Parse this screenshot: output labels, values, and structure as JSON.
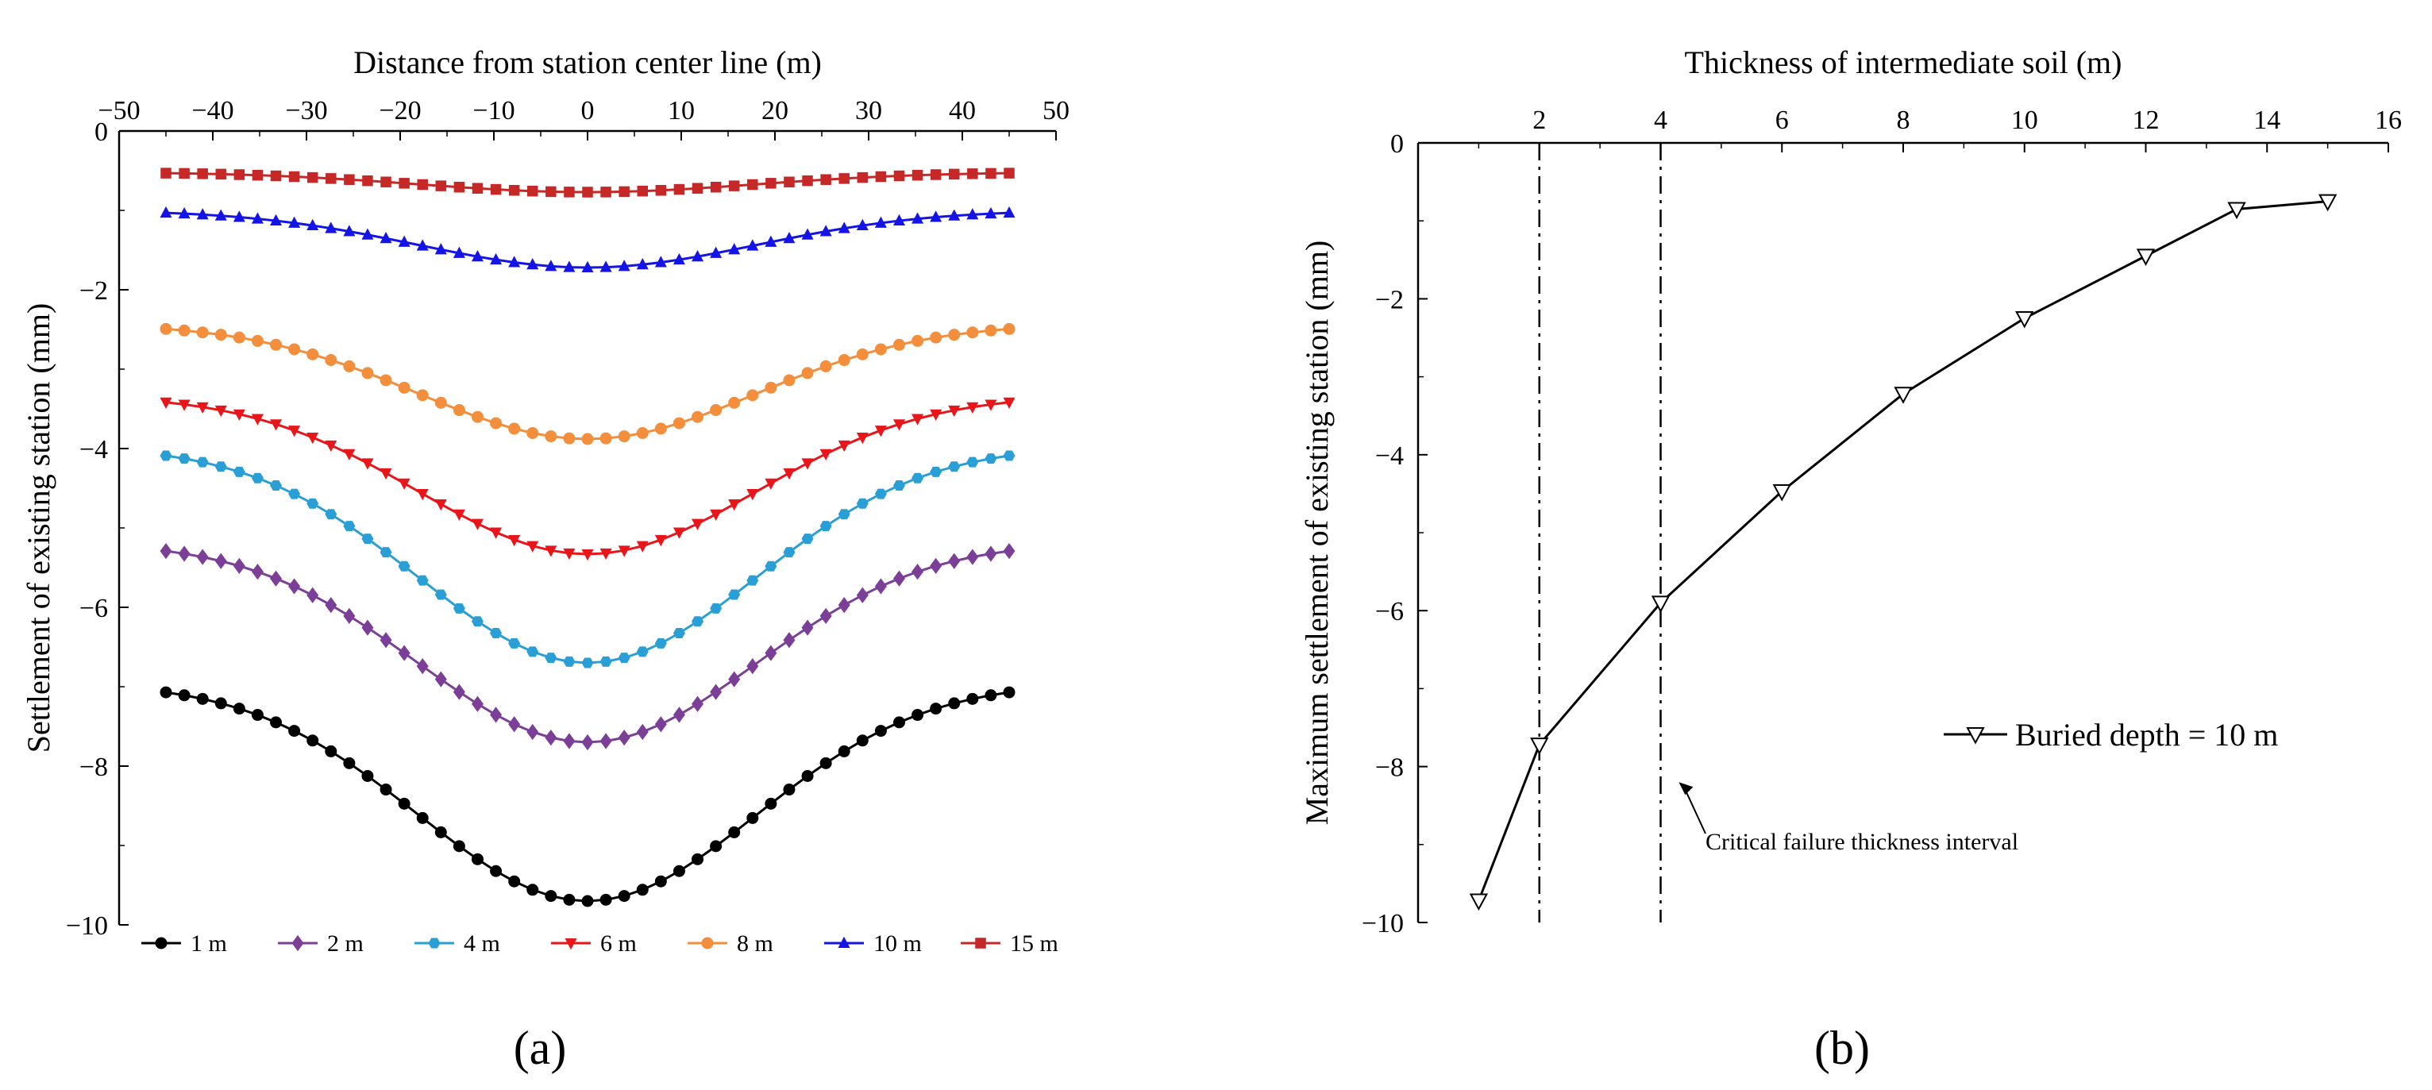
{
  "chart_data": [
    {
      "panel": "a",
      "panel_label": "(a)",
      "type": "line",
      "xlabel": "Distance from station center line (m)",
      "ylabel": "Settlement of existing station (mm)",
      "xlim": [
        -50,
        50
      ],
      "ylim": [
        -10,
        0
      ],
      "xticks": [
        -50,
        -40,
        -30,
        -20,
        -10,
        0,
        10,
        20,
        30,
        40,
        50
      ],
      "yticks": [
        0,
        -2,
        -4,
        -6,
        -8,
        -10
      ],
      "x_axis_position": "top",
      "x_range_of_data": [
        -45,
        45
      ],
      "legend_position": "bottom",
      "series": [
        {
          "name": "1 m",
          "color": "#000000",
          "marker": "circle",
          "edge": -6.95,
          "center": -9.7
        },
        {
          "name": "2 m",
          "color": "#7B3F98",
          "marker": "diamond",
          "edge": -5.18,
          "center": -7.7
        },
        {
          "name": "4 m",
          "color": "#2A9FD6",
          "marker": "hexagon",
          "edge": -3.97,
          "center": -6.7
        },
        {
          "name": "6 m",
          "color": "#E8151B",
          "marker": "triangle-down",
          "edge": -3.33,
          "center": -5.33
        },
        {
          "name": "8 m",
          "color": "#F28E3C",
          "marker": "circle",
          "edge": -2.43,
          "center": -3.88
        },
        {
          "name": "10 m",
          "color": "#1414E6",
          "marker": "triangle-up",
          "edge": -1.0,
          "center": -1.72
        },
        {
          "name": "15 m",
          "color": "#C62828",
          "marker": "square",
          "edge": -0.52,
          "center": -0.77
        }
      ]
    },
    {
      "panel": "b",
      "panel_label": "(b)",
      "type": "line",
      "xlabel": "Thickness of intermediate soil (m)",
      "ylabel": "Maximum settlement of existing station (mm)",
      "xlim": [
        0,
        16
      ],
      "ylim": [
        -10,
        0
      ],
      "xticks": [
        2,
        4,
        6,
        8,
        10,
        12,
        14,
        16
      ],
      "yticks": [
        0,
        -2,
        -4,
        -6,
        -8,
        -10
      ],
      "x_axis_position": "top",
      "legend_position": "right",
      "series": [
        {
          "name": "Buried depth = 10 m",
          "color": "#000000",
          "marker": "triangle-down-open",
          "x": [
            1,
            2,
            4,
            6,
            8,
            10,
            12,
            13.5,
            15
          ],
          "y": [
            -9.72,
            -7.72,
            -5.9,
            -4.47,
            -3.22,
            -2.25,
            -1.45,
            -0.85,
            -0.75
          ]
        }
      ],
      "vlines": [
        2,
        4
      ],
      "annotation": {
        "text": "Critical failure thickness interval",
        "arrow_to": [
          4.3,
          -8.2
        ]
      }
    }
  ]
}
